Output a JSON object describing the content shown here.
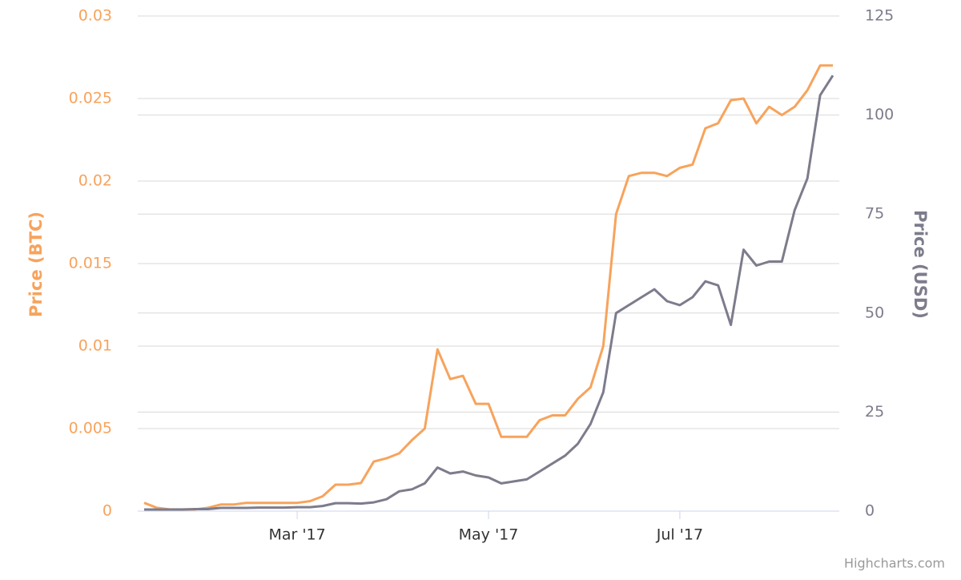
{
  "chart_data": {
    "type": "line",
    "categories": [
      null,
      null,
      null,
      null,
      null,
      null,
      null,
      null,
      null,
      null,
      null,
      null,
      "Mar '17",
      null,
      null,
      null,
      null,
      null,
      null,
      null,
      null,
      null,
      null,
      null,
      null,
      null,
      null,
      "May '17",
      null,
      null,
      null,
      null,
      null,
      null,
      null,
      null,
      null,
      null,
      null,
      null,
      null,
      null,
      "Jul '17",
      null,
      null,
      null,
      null,
      null,
      null,
      null,
      null,
      null,
      null,
      null,
      null
    ],
    "series": [
      {
        "name": "Price (BTC)",
        "color": "#f7a35c",
        "values": [
          0.0005,
          0.0002,
          0.0001,
          0.0001,
          0.0001,
          0.0002,
          0.0004,
          0.0004,
          0.0005,
          0.0005,
          0.0005,
          0.0005,
          0.0005,
          0.0006,
          0.0009,
          0.0016,
          0.0016,
          0.0017,
          0.003,
          0.0032,
          0.0035,
          0.0043,
          0.005,
          0.0098,
          0.008,
          0.0082,
          0.0065,
          0.0065,
          0.0045,
          0.0045,
          0.0045,
          0.0055,
          0.0058,
          0.0058,
          0.0068,
          0.0075,
          0.01,
          0.018,
          0.0203,
          0.0205,
          0.0205,
          0.0203,
          0.0208,
          0.021,
          0.0232,
          0.0235,
          0.0249,
          0.025,
          0.0235,
          0.0245,
          0.024,
          0.0245,
          0.0255,
          0.027,
          0.027
        ]
      },
      {
        "name": "Price (USD)",
        "color": "#7c7c8c",
        "axis": "y2",
        "values": [
          0.4,
          0.4,
          0.4,
          0.4,
          0.5,
          0.5,
          0.8,
          0.8,
          0.8,
          0.9,
          0.9,
          0.9,
          1.0,
          1.0,
          1.3,
          2.0,
          2.0,
          1.9,
          2.2,
          3.0,
          5,
          5.5,
          7,
          11,
          9.5,
          10,
          9,
          8.5,
          7,
          7.5,
          8,
          10,
          12,
          14,
          17,
          22,
          30,
          50,
          52,
          54,
          56,
          53,
          52,
          54,
          58,
          57,
          47,
          66,
          62,
          63,
          63,
          76,
          84,
          105,
          110
        ]
      }
    ],
    "ylim": [
      0,
      0.03
    ],
    "yticks": [
      0,
      0.005,
      0.01,
      0.015,
      0.02,
      0.025,
      0.03
    ],
    "y2lim": [
      0,
      125
    ],
    "y2ticks": [
      0,
      25,
      50,
      75,
      100,
      125
    ],
    "ylabel": "Price (BTC)",
    "y2label": "Price (USD)",
    "grid": true,
    "credits": "Highcharts.com"
  }
}
